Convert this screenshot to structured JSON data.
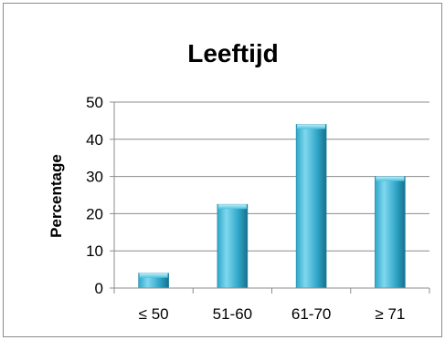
{
  "chart_data": {
    "type": "bar",
    "title": "Leeftijd",
    "xlabel": "",
    "ylabel": "Percentage",
    "categories": [
      "≤ 50",
      "51-60",
      "61-70",
      "≥ 71"
    ],
    "values": [
      4,
      22.5,
      44,
      30
    ],
    "ylim": [
      0,
      50
    ],
    "yticks": [
      "0",
      "10",
      "20",
      "30",
      "40",
      "50"
    ],
    "grid": true,
    "legend": "none",
    "colors": {
      "bar_light": "#7fd8ee",
      "bar_mid": "#2fa6c8",
      "bar_dark": "#17708c",
      "grid": "#8c8c8c",
      "axis": "#8c8c8c"
    }
  }
}
